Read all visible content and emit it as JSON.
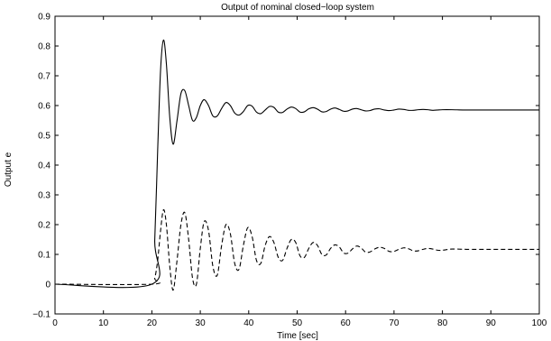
{
  "chart_data": {
    "type": "line",
    "title": "Output of nominal closed−loop system",
    "xlabel": "Time [sec]",
    "ylabel": "Output e",
    "xlim": [
      0,
      100
    ],
    "ylim": [
      -0.1,
      0.9
    ],
    "x_ticks": [
      0,
      10,
      20,
      30,
      40,
      50,
      60,
      70,
      80,
      90,
      100
    ],
    "x_tick_labels": [
      "0",
      "10",
      "20",
      "30",
      "40",
      "50",
      "60",
      "70",
      "80",
      "90",
      "100"
    ],
    "y_ticks": [
      -0.1,
      0,
      0.1,
      0.2,
      0.3,
      0.4,
      0.5,
      0.6,
      0.7,
      0.8,
      0.9
    ],
    "y_tick_labels": [
      "−0.1",
      "0",
      "0.1",
      "0.2",
      "0.3",
      "0.4",
      "0.5",
      "0.6",
      "0.7",
      "0.8",
      "0.9"
    ],
    "grid": false,
    "legend": "none",
    "series": [
      {
        "style": "solid",
        "color": "#000000",
        "x": [
          0,
          20,
          20.6,
          21.2,
          21.8,
          22.4,
          23.0,
          23.7,
          24.4,
          25.2,
          26.0,
          26.8,
          27.6,
          28.4,
          29.2,
          30.0,
          30.8,
          31.7,
          32.6,
          33.5,
          34.4,
          35.3,
          36.2,
          37.1,
          38.0,
          38.9,
          39.8,
          40.7,
          41.6,
          42.5,
          43.4,
          44.3,
          45.2,
          46.1,
          47.0,
          47.9,
          48.8,
          49.7,
          50.6,
          51.5,
          52.4,
          53.3,
          54.2,
          55.1,
          56.0,
          56.9,
          57.8,
          58.7,
          59.6,
          60.5,
          61.4,
          62.3,
          63.2,
          64.1,
          65.0,
          66.0,
          67.0,
          68.0,
          69.0,
          70.0,
          71.0,
          72.0,
          73.0,
          74.0,
          75.0,
          76.0,
          77.0,
          78.0,
          79.0,
          80.0,
          82.0,
          85.0,
          90.0,
          95.0,
          100.0
        ],
        "values": [
          0,
          0,
          0.15,
          0.45,
          0.72,
          0.82,
          0.74,
          0.56,
          0.47,
          0.55,
          0.64,
          0.65,
          0.6,
          0.55,
          0.56,
          0.6,
          0.62,
          0.6,
          0.565,
          0.565,
          0.59,
          0.61,
          0.6,
          0.575,
          0.568,
          0.58,
          0.6,
          0.598,
          0.578,
          0.573,
          0.585,
          0.597,
          0.594,
          0.578,
          0.577,
          0.588,
          0.595,
          0.59,
          0.578,
          0.579,
          0.589,
          0.593,
          0.588,
          0.579,
          0.58,
          0.588,
          0.592,
          0.587,
          0.581,
          0.582,
          0.588,
          0.59,
          0.586,
          0.582,
          0.583,
          0.588,
          0.589,
          0.585,
          0.583,
          0.585,
          0.588,
          0.587,
          0.584,
          0.584,
          0.586,
          0.587,
          0.586,
          0.584,
          0.585,
          0.586,
          0.586,
          0.585,
          0.585,
          0.585,
          0.585
        ]
      },
      {
        "style": "dashed",
        "color": "#000000",
        "x": [
          0,
          20,
          20.6,
          21.2,
          21.8,
          22.4,
          23.0,
          23.7,
          24.4,
          25.2,
          26.0,
          26.8,
          27.6,
          28.4,
          29.2,
          30.0,
          30.8,
          31.7,
          32.6,
          33.5,
          34.4,
          35.3,
          36.2,
          37.1,
          38.0,
          38.9,
          39.8,
          40.7,
          41.6,
          42.5,
          43.4,
          44.3,
          45.2,
          46.1,
          47.0,
          47.9,
          48.8,
          49.7,
          50.6,
          51.5,
          52.4,
          53.3,
          54.2,
          55.1,
          56.0,
          56.9,
          57.8,
          58.7,
          59.6,
          60.5,
          61.4,
          62.3,
          63.2,
          64.1,
          65.0,
          66.0,
          67.0,
          68.0,
          69.0,
          70.0,
          71.0,
          72.0,
          73.0,
          74.0,
          75.0,
          76.0,
          77.0,
          78.0,
          79.0,
          80.0,
          82.0,
          85.0,
          90.0,
          95.0,
          100.0
        ],
        "values": [
          0,
          0,
          0.02,
          0.08,
          0.18,
          0.25,
          0.2,
          0.06,
          -0.02,
          0.08,
          0.2,
          0.24,
          0.15,
          0.02,
          0.0,
          0.12,
          0.21,
          0.18,
          0.06,
          0.03,
          0.13,
          0.2,
          0.17,
          0.07,
          0.05,
          0.13,
          0.19,
          0.16,
          0.08,
          0.07,
          0.13,
          0.16,
          0.14,
          0.09,
          0.08,
          0.12,
          0.15,
          0.14,
          0.095,
          0.09,
          0.12,
          0.14,
          0.13,
          0.1,
          0.098,
          0.12,
          0.132,
          0.125,
          0.105,
          0.104,
          0.118,
          0.128,
          0.122,
          0.108,
          0.108,
          0.118,
          0.124,
          0.12,
          0.11,
          0.11,
          0.117,
          0.122,
          0.119,
          0.112,
          0.112,
          0.117,
          0.12,
          0.118,
          0.114,
          0.114,
          0.118,
          0.117,
          0.117,
          0.117,
          0.117
        ]
      }
    ]
  }
}
